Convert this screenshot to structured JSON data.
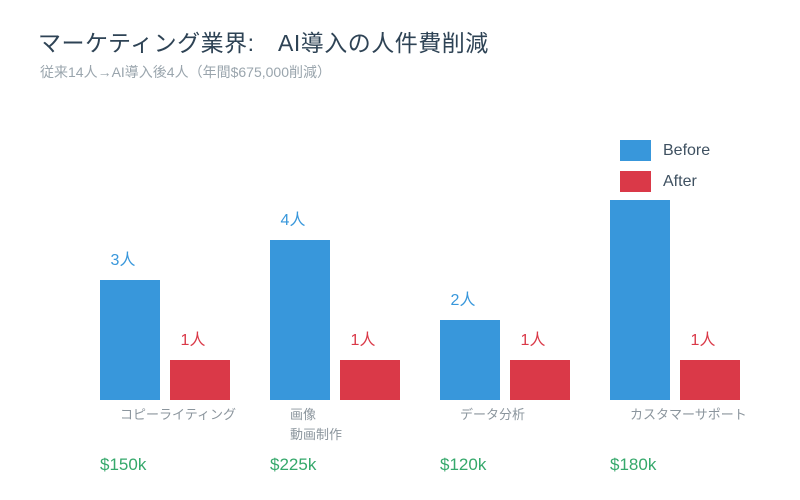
{
  "title": "マーケティング業界:　AI導入の人件費削減",
  "subtitle": "従来14人→AI導入後4人（年間$675,000削減）",
  "legend": {
    "before": "Before",
    "after": "After"
  },
  "colors": {
    "blue": "#3897db",
    "red": "#da3948",
    "green": "#35a86b",
    "title": "#2e4355",
    "subtitle": "#9aa5ad",
    "legendtext": "#3f5161",
    "cattext": "#8b959d"
  },
  "chart_data": {
    "type": "bar",
    "categories": [
      [
        "コピーライティング"
      ],
      [
        "画像",
        "動画制作"
      ],
      [
        "データ分析"
      ],
      [
        "カスタマーサポート"
      ]
    ],
    "series": [
      {
        "name": "Before",
        "values": [
          3,
          4,
          2,
          5
        ]
      },
      {
        "name": "After",
        "values": [
          1,
          1,
          1,
          1
        ]
      }
    ],
    "unit": "人",
    "value_labels_before": [
      "3人",
      "4人",
      "2人",
      ""
    ],
    "value_labels_after": [
      "1人",
      "1人",
      "1人",
      "1人"
    ],
    "before_label_visible": [
      true,
      true,
      true,
      false
    ],
    "savings_labels": [
      "$150k",
      "$225k",
      "$120k",
      "$180k"
    ],
    "title": "マーケティング業界:　AI導入の人件費削減",
    "subtitle": "従来14人→AI導入後4人（年間$675,000削減）",
    "legend_position": "top-right",
    "grid": false,
    "ylim": [
      0,
      5
    ]
  }
}
